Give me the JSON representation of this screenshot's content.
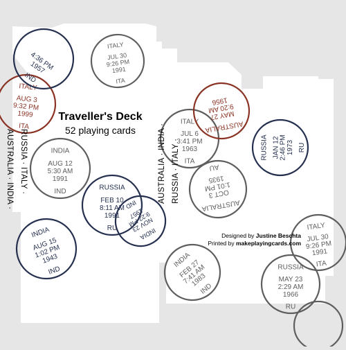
{
  "title": "Traveller's Deck",
  "subtitle": "52 playing cards",
  "credits": {
    "designed_prefix": "Designed by ",
    "designer": "Justine Beschta",
    "printed_prefix": "Printed by ",
    "printer": "makeplayingcards.com"
  },
  "side_labels": {
    "left_line1": "AUSTRALIA · INDIA ·",
    "left_line2": "RUSSIA · ITALY ·",
    "right_line1": "AUSTRALIA · INDIA ·",
    "right_line2": "RUSSIA · ITALY ·"
  },
  "colors": {
    "background": "#e6e6e6",
    "card": "#ffffff",
    "stamp_gray": "#5e5e5e",
    "stamp_navy": "#25304f",
    "stamp_red": "#8a3324"
  },
  "stamps": [
    {
      "country": "ITALY",
      "date": "JUL 30",
      "time": "9:26 PM",
      "year": "1991",
      "code": "ITA",
      "color": "gray"
    },
    {
      "country": "ITALY",
      "date": "AUG 3",
      "time": "9:32 PM",
      "year": "1999",
      "code": "ITA",
      "color": "red"
    },
    {
      "country": "",
      "date": "",
      "time": "4:36 PM",
      "year": "1957",
      "code": "IND",
      "color": "navy"
    },
    {
      "country": "INDIA",
      "date": "AUG 12",
      "time": "5:30 AM",
      "year": "1991",
      "code": "IND",
      "color": "gray"
    },
    {
      "country": "RUSSIA",
      "date": "FEB 10",
      "time": "8:11 AM",
      "year": "1991",
      "code": "RU",
      "color": "navy"
    },
    {
      "country": "INDIA",
      "date": "NOV 23",
      "time": "9:22 PM",
      "year": "1957",
      "code": "IND",
      "color": "navy"
    },
    {
      "country": "INDIA",
      "date": "AUG 15",
      "time": "1:02 PM",
      "year": "1943",
      "code": "IND",
      "color": "navy"
    },
    {
      "country": "ITALY",
      "date": "JUL 6",
      "time": "3:41 PM",
      "year": "1963",
      "code": "ITA",
      "color": "gray"
    },
    {
      "country": "AUSTRALIA",
      "date": "MAY 27",
      "time": "9:20 AM",
      "year": "1956",
      "code": "",
      "color": "red"
    },
    {
      "country": "RUSSIA",
      "date": "JAN 12",
      "time": "2:46 PM",
      "year": "1973",
      "code": "RU",
      "color": "navy"
    },
    {
      "country": "AUSTRALIA",
      "date": "OCT 3",
      "time": "1:01 PM",
      "year": "1935",
      "code": "AU",
      "color": "gray"
    },
    {
      "country": "ITALY",
      "date": "JUL 30",
      "time": "9:26 PM",
      "year": "1991",
      "code": "ITA",
      "color": "gray"
    },
    {
      "country": "RUSSIA",
      "date": "MAY 23",
      "time": "2:29 AM",
      "year": "1966",
      "code": "RU",
      "color": "gray"
    },
    {
      "country": "INDIA",
      "date": "FEB 27",
      "time": "7:41 AM",
      "year": "1983",
      "code": "IND",
      "color": "gray"
    },
    {
      "country": "",
      "date": "",
      "time": "",
      "year": "",
      "code": "",
      "color": "gray"
    }
  ]
}
